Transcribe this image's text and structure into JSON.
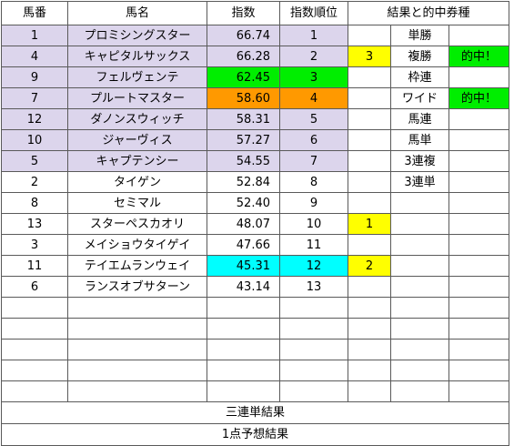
{
  "colors": {
    "highlight_row": "#dcd5ec",
    "hit_green": "#00ee00",
    "orange": "#ff9900",
    "cyan": "#00ffff",
    "yellow": "#ffff00",
    "border": "#5a5a5a"
  },
  "headers": {
    "umaban": "馬番",
    "name": "馬名",
    "index": "指数",
    "rank": "指数順位",
    "result": "結果と的中券種"
  },
  "rows": [
    {
      "umaban": "1",
      "name": "プロミシングスター",
      "index": "66.74",
      "rank": "1",
      "finish": "",
      "bet": "単勝",
      "hit": ""
    },
    {
      "umaban": "4",
      "name": "キャピタルサックス",
      "index": "66.28",
      "rank": "2",
      "finish": "3",
      "bet": "複勝",
      "hit": "的中！"
    },
    {
      "umaban": "9",
      "name": "フェルヴェンテ",
      "index": "62.45",
      "rank": "3",
      "finish": "",
      "bet": "枠連",
      "hit": ""
    },
    {
      "umaban": "7",
      "name": "プルートマスター",
      "index": "58.60",
      "rank": "4",
      "finish": "",
      "bet": "ワイド",
      "hit": "的中！"
    },
    {
      "umaban": "12",
      "name": "ダノンスウィッチ",
      "index": "58.31",
      "rank": "5",
      "finish": "",
      "bet": "馬連",
      "hit": ""
    },
    {
      "umaban": "10",
      "name": "ジャーヴィス",
      "index": "57.27",
      "rank": "6",
      "finish": "",
      "bet": "馬単",
      "hit": ""
    },
    {
      "umaban": "5",
      "name": "キャプテンシー",
      "index": "54.55",
      "rank": "7",
      "finish": "",
      "bet": "3連複",
      "hit": ""
    },
    {
      "umaban": "2",
      "name": "タイゲン",
      "index": "52.84",
      "rank": "8",
      "finish": "",
      "bet": "3連単",
      "hit": ""
    },
    {
      "umaban": "8",
      "name": "セミマル",
      "index": "52.40",
      "rank": "9",
      "finish": "",
      "bet": "",
      "hit": ""
    },
    {
      "umaban": "13",
      "name": "スターペスカオリ",
      "index": "48.07",
      "rank": "10",
      "finish": "1",
      "bet": "",
      "hit": ""
    },
    {
      "umaban": "3",
      "name": "メイショウタイゲイ",
      "index": "47.66",
      "rank": "11",
      "finish": "",
      "bet": "",
      "hit": ""
    },
    {
      "umaban": "11",
      "name": "テイエムランウェイ",
      "index": "45.31",
      "rank": "12",
      "finish": "2",
      "bet": "",
      "hit": ""
    },
    {
      "umaban": "6",
      "name": "ランスオブサターン",
      "index": "43.14",
      "rank": "13",
      "finish": "",
      "bet": "",
      "hit": ""
    }
  ],
  "footer": {
    "sanrentan": "三連単結果",
    "one_point": "1点予想結果"
  }
}
